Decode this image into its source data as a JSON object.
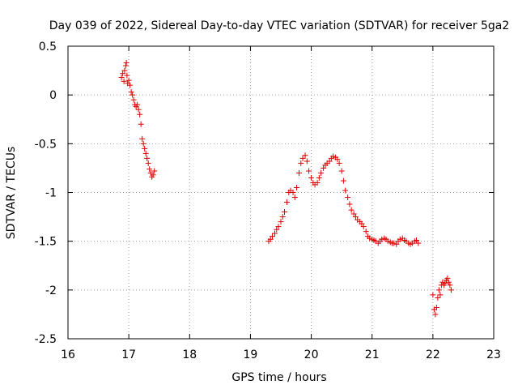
{
  "chart_data": {
    "type": "scatter",
    "title": "Day 039 of 2022, Sidereal Day-to-day VTEC variation (SDTVAR) for receiver 5ga2",
    "xlabel": "GPS time / hours",
    "ylabel": "SDTVAR / TECUs",
    "xlim": [
      16,
      23
    ],
    "ylim": [
      -2.5,
      0.5
    ],
    "xticks": [
      "16",
      "17",
      "18",
      "19",
      "20",
      "21",
      "22",
      "23"
    ],
    "yticks": [
      "0.5",
      "0",
      "-0.5",
      "-1",
      "-1.5",
      "-2",
      "-2.5"
    ],
    "grid": true,
    "marker": "+",
    "colors": {
      "series": "#e00000",
      "grid": "#a0a0a0",
      "axes": "#000000"
    },
    "series": [
      {
        "name": "5ga2",
        "x": [
          16.88,
          16.9,
          16.92,
          16.93,
          16.95,
          16.96,
          16.97,
          16.98,
          17.0,
          17.02,
          17.04,
          17.06,
          17.08,
          17.1,
          17.12,
          17.14,
          17.16,
          17.18,
          17.2,
          17.22,
          17.24,
          17.26,
          17.28,
          17.3,
          17.32,
          17.34,
          17.36,
          17.38,
          17.4,
          17.42,
          19.3,
          19.33,
          19.36,
          19.4,
          19.43,
          19.46,
          19.5,
          19.53,
          19.56,
          19.6,
          19.63,
          19.66,
          19.7,
          19.73,
          19.76,
          19.8,
          19.83,
          19.86,
          19.9,
          19.93,
          19.96,
          20.0,
          20.03,
          20.06,
          20.1,
          20.13,
          20.16,
          20.2,
          20.23,
          20.26,
          20.3,
          20.33,
          20.36,
          20.4,
          20.43,
          20.46,
          20.5,
          20.53,
          20.56,
          20.6,
          20.63,
          20.66,
          20.7,
          20.73,
          20.76,
          20.8,
          20.83,
          20.86,
          20.9,
          20.93,
          20.96,
          21.0,
          21.03,
          21.06,
          21.1,
          21.13,
          21.16,
          21.2,
          21.23,
          21.26,
          21.3,
          21.33,
          21.36,
          21.4,
          21.43,
          21.46,
          21.5,
          21.53,
          21.56,
          21.6,
          21.63,
          21.66,
          21.7,
          21.73,
          21.76,
          22.0,
          22.02,
          22.04,
          22.06,
          22.08,
          22.1,
          22.12,
          22.14,
          22.16,
          22.18,
          22.2,
          22.22,
          22.24,
          22.26,
          22.28,
          22.3
        ],
        "y": [
          0.18,
          0.22,
          0.14,
          0.25,
          0.3,
          0.33,
          0.2,
          0.12,
          0.15,
          0.1,
          0.03,
          0.0,
          -0.05,
          -0.1,
          -0.12,
          -0.1,
          -0.15,
          -0.2,
          -0.3,
          -0.45,
          -0.5,
          -0.55,
          -0.6,
          -0.65,
          -0.7,
          -0.76,
          -0.8,
          -0.84,
          -0.82,
          -0.78,
          -1.5,
          -1.48,
          -1.45,
          -1.42,
          -1.38,
          -1.35,
          -1.3,
          -1.25,
          -1.2,
          -1.1,
          -1.0,
          -0.98,
          -1.0,
          -1.05,
          -0.95,
          -0.8,
          -0.7,
          -0.65,
          -0.62,
          -0.68,
          -0.78,
          -0.85,
          -0.9,
          -0.92,
          -0.9,
          -0.85,
          -0.8,
          -0.75,
          -0.72,
          -0.7,
          -0.68,
          -0.65,
          -0.63,
          -0.64,
          -0.66,
          -0.7,
          -0.78,
          -0.88,
          -0.98,
          -1.05,
          -1.12,
          -1.18,
          -1.22,
          -1.25,
          -1.28,
          -1.3,
          -1.32,
          -1.35,
          -1.4,
          -1.45,
          -1.47,
          -1.48,
          -1.49,
          -1.5,
          -1.52,
          -1.5,
          -1.48,
          -1.47,
          -1.48,
          -1.5,
          -1.51,
          -1.52,
          -1.52,
          -1.53,
          -1.5,
          -1.48,
          -1.47,
          -1.49,
          -1.5,
          -1.52,
          -1.53,
          -1.52,
          -1.5,
          -1.49,
          -1.52,
          -2.05,
          -2.2,
          -2.25,
          -2.18,
          -2.08,
          -2.0,
          -2.05,
          -1.95,
          -1.92,
          -1.95,
          -1.93,
          -1.9,
          -1.88,
          -1.92,
          -1.95,
          -2.0
        ]
      }
    ]
  }
}
